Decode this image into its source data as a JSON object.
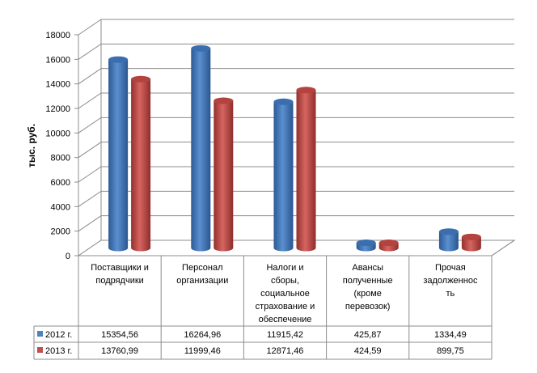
{
  "chart_data": {
    "type": "bar",
    "title": "",
    "xlabel": "",
    "ylabel": "тыс. руб.",
    "ylim": [
      0,
      18000
    ],
    "yticks": [
      "0",
      "2000",
      "4000",
      "6000",
      "8000",
      "10000",
      "12000",
      "14000",
      "16000",
      "18000"
    ],
    "grid": true,
    "categories": [
      [
        "Поставщики и",
        "подрядчики"
      ],
      [
        "Персонал",
        "организации"
      ],
      [
        "Налоги и",
        "сборы,",
        "социальное",
        "страхование и",
        "обеспечение"
      ],
      [
        "Авансы",
        "полученные",
        "(кроме",
        "перевозок)"
      ],
      [
        "Прочая",
        "задолженнос",
        "ть"
      ]
    ],
    "series": [
      {
        "name": "2012 г.",
        "color": "#4f81bd",
        "values": [
          15354.56,
          16264.96,
          11915.42,
          425.87,
          1334.49
        ],
        "labels": [
          "15354,56",
          "16264,96",
          "11915,42",
          "425,87",
          "1334,49"
        ]
      },
      {
        "name": "2013 г.",
        "color": "#c0504d",
        "values": [
          13760.99,
          11999.46,
          12871.46,
          424.59,
          899.75
        ],
        "labels": [
          "13760,99",
          "11999,46",
          "12871,46",
          "424,59",
          "899,75"
        ]
      }
    ],
    "legend": "data-table-left"
  }
}
